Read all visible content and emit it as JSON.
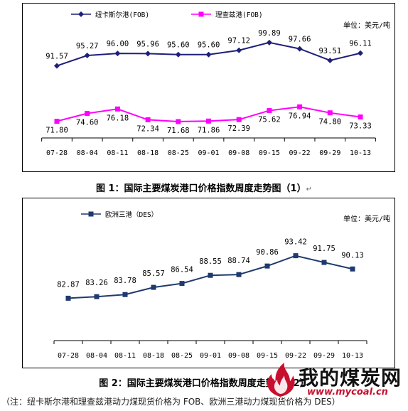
{
  "chart_data": [
    {
      "type": "line",
      "categories": [
        "07-28",
        "08-04",
        "08-11",
        "08-18",
        "08-25",
        "09-01",
        "09-08",
        "09-15",
        "09-22",
        "09-29",
        "10-13"
      ],
      "series": [
        {
          "name": "纽卡斯尔港(FOB)",
          "color": "#1f1f7a",
          "marker": "diamond",
          "values": [
            91.57,
            95.27,
            96.0,
            95.96,
            95.6,
            95.6,
            97.12,
            99.89,
            97.66,
            93.51,
            96.11
          ],
          "labels": [
            "91.57",
            "95.27",
            "96.00",
            "95.96",
            "95.60",
            "95.60",
            "97.12",
            "99.89",
            "97.66",
            "93.51",
            "96.11"
          ]
        },
        {
          "name": "理查兹港(FOB)",
          "color": "#ff00ff",
          "marker": "square",
          "values": [
            71.8,
            74.6,
            76.18,
            72.34,
            71.68,
            71.86,
            72.39,
            75.62,
            76.94,
            74.8,
            73.33
          ],
          "labels": [
            "71.80",
            "74.60",
            "76.18",
            "72.34",
            "71.68",
            "71.86",
            "72.39",
            "75.62",
            "76.94",
            "74.80",
            "73.33"
          ]
        }
      ],
      "unit_label": "单位：美元/吨",
      "title": "图 1：国际主要煤炭港口价格指数周度走势图（1）",
      "grid": false,
      "legend": "top-left"
    },
    {
      "type": "line",
      "categories": [
        "07-28",
        "08-04",
        "08-11",
        "08-18",
        "08-25",
        "09-01",
        "09-08",
        "09-15",
        "09-22",
        "09-29",
        "10-13"
      ],
      "series": [
        {
          "name": "欧洲三港（DES）",
          "color": "#1f3a6e",
          "marker": "square",
          "values": [
            82.87,
            83.26,
            83.78,
            85.57,
            86.54,
            88.55,
            88.74,
            90.86,
            93.42,
            91.75,
            90.13
          ],
          "labels": [
            "82.87",
            "83.26",
            "83.78",
            "85.57",
            "86.54",
            "88.55",
            "88.74",
            "90.86",
            "93.42",
            "91.75",
            "90.13"
          ]
        }
      ],
      "unit_label": "单位：美元/吨",
      "title": "图 2：国际主要煤炭港口价格指数周度走势图（2）",
      "grid": false,
      "legend": "top-left"
    }
  ],
  "note": "（注：纽卡斯尔港和理查兹港动力煤现货价格为 FOB、欧洲三港动力煤现货价格为 DES）",
  "watermark": {
    "title": "我的煤炭网",
    "url": "www.mycoal.cn"
  },
  "colors": {
    "watermark_red": "#c8102e"
  }
}
